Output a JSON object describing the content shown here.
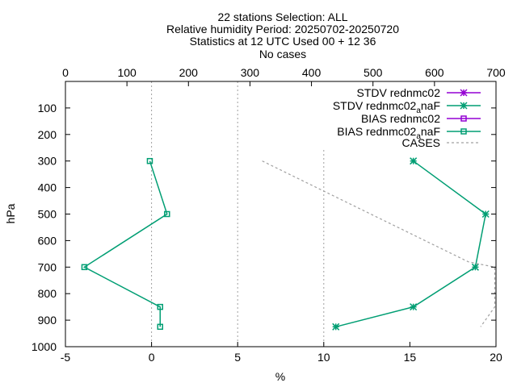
{
  "chart_data": {
    "type": "line",
    "title": {
      "line1": "22 stations Selection: ALL",
      "line2": "Relative humidity  Period: 20250702-20250720",
      "line3": "Statistics at 12 UTC  Used 00 + 12 36",
      "line4": "No cases"
    },
    "xlabel": "%",
    "ylabel": "hPa",
    "xlim": [
      -5,
      20
    ],
    "ylim": [
      1000,
      0
    ],
    "x2lim": [
      0,
      700
    ],
    "xticks": [
      "-5",
      "0",
      "5",
      "10",
      "15",
      "20"
    ],
    "yticks": [
      "100",
      "200",
      "300",
      "400",
      "500",
      "600",
      "700",
      "800",
      "900",
      "1000"
    ],
    "x2ticks": [
      "0",
      "100",
      "200",
      "300",
      "400",
      "500",
      "600",
      "700"
    ],
    "grid": "dashed vertical lines at x = 0, 5, 10",
    "legend_position": "top-right",
    "legend": {
      "s1": "STDV rednmc02",
      "s2_main": "STDV rednmc02",
      "s2_sub": "a",
      "s2_tail": "naF",
      "s3": "BIAS rednmc02",
      "s4_main": "BIAS rednmc02",
      "s4_sub": "a",
      "s4_tail": "naF",
      "s5": "CASES"
    },
    "series": [
      {
        "name": "STDV rednmc02",
        "color": "#9400d3",
        "marker": "star",
        "points": []
      },
      {
        "name": "STDV rednmc02anaF",
        "color": "#009e73",
        "marker": "star",
        "points": [
          [
            15.2,
            300
          ],
          [
            19.4,
            500
          ],
          [
            18.8,
            700
          ],
          [
            15.2,
            850
          ],
          [
            10.7,
            925
          ]
        ]
      },
      {
        "name": "BIAS rednmc02",
        "color": "#9400d3",
        "marker": "square",
        "points": []
      },
      {
        "name": "BIAS rednmc02anaF",
        "color": "#009e73",
        "marker": "square",
        "points": [
          [
            -0.1,
            300
          ],
          [
            0.9,
            500
          ],
          [
            -3.9,
            700
          ],
          [
            0.5,
            850
          ],
          [
            0.5,
            925
          ]
        ]
      },
      {
        "name": "CASES",
        "color": "#a0a0a0",
        "axis": "x2",
        "dashed": true,
        "points": [
          [
            320,
            300
          ],
          [
            655,
            680
          ],
          [
            698,
            700
          ],
          [
            698,
            850
          ],
          [
            675,
            925
          ]
        ]
      }
    ]
  }
}
